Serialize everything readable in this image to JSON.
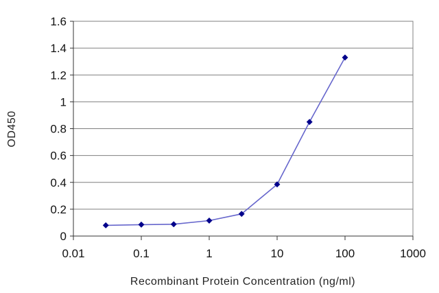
{
  "chart_data": {
    "type": "line",
    "title": "",
    "xlabel": "Recombinant Protein Concentration (ng/ml)",
    "ylabel": "OD450",
    "x_scale": "log",
    "xlim": [
      0.01,
      1000
    ],
    "ylim": [
      0,
      1.6
    ],
    "grid": {
      "horizontal": true,
      "vertical": false
    },
    "legend": "none",
    "x_ticks": [
      "0.01",
      "0.1",
      "1",
      "10",
      "100",
      "1000"
    ],
    "y_ticks": [
      "0",
      "0.2",
      "0.4",
      "0.6",
      "0.8",
      "1",
      "1.2",
      "1.4",
      "1.6"
    ],
    "series": [
      {
        "color": "#00008b",
        "line_color": "#6666cc",
        "x": [
          0.03,
          0.1,
          0.3,
          1,
          3,
          10,
          30,
          100
        ],
        "y": [
          0.08,
          0.085,
          0.088,
          0.115,
          0.165,
          0.385,
          0.85,
          1.33
        ]
      }
    ]
  }
}
